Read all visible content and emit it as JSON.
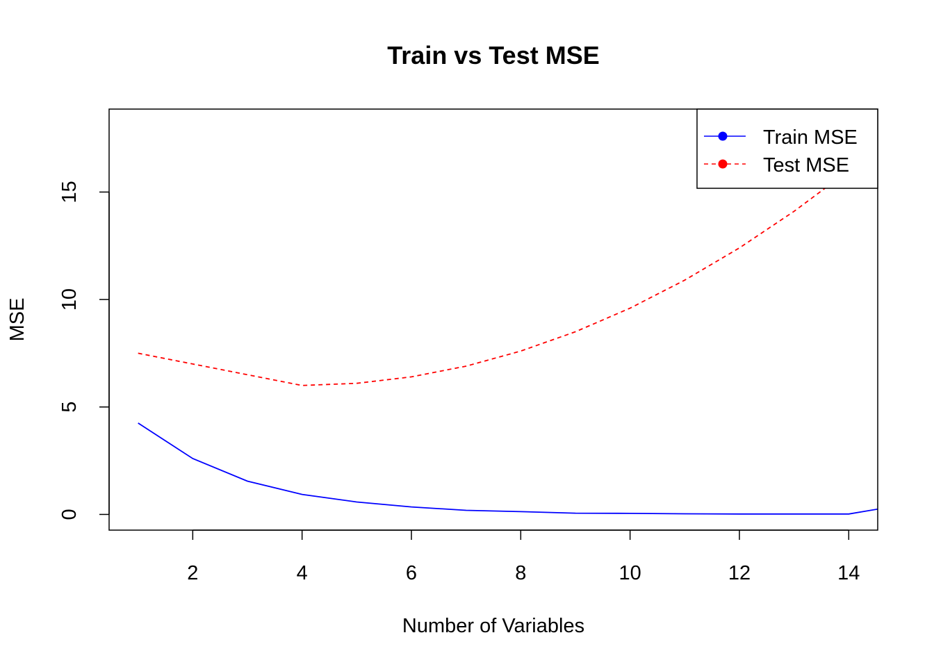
{
  "chart_data": {
    "type": "line",
    "title": "Train vs Test MSE",
    "xlabel": "Number of Variables",
    "ylabel": "MSE",
    "xlim": [
      0.47,
      14.53
    ],
    "ylim": [
      -0.73,
      18.86
    ],
    "x_ticks": [
      2,
      4,
      6,
      8,
      10,
      12,
      14
    ],
    "y_ticks": [
      0,
      5,
      10,
      15
    ],
    "grid": false,
    "legend": {
      "position": "top-right"
    },
    "x": [
      1,
      2,
      3,
      4,
      5,
      6,
      7,
      8,
      9,
      10,
      11,
      12,
      13,
      14,
      15
    ],
    "series": [
      {
        "name": "Train MSE",
        "color": "#0000ff",
        "dash": "solid",
        "values": [
          4.25,
          2.6,
          1.55,
          0.93,
          0.58,
          0.35,
          0.19,
          0.13,
          0.06,
          0.05,
          0.03,
          0.02,
          0.02,
          0.02,
          0.45
        ]
      },
      {
        "name": "Test MSE",
        "color": "#ff0000",
        "dash": "dashed",
        "values": [
          7.5,
          7.0,
          6.5,
          6.0,
          6.1,
          6.4,
          6.9,
          7.6,
          8.5,
          9.6,
          10.9,
          12.4,
          14.1,
          16.0,
          18.2
        ]
      }
    ]
  }
}
